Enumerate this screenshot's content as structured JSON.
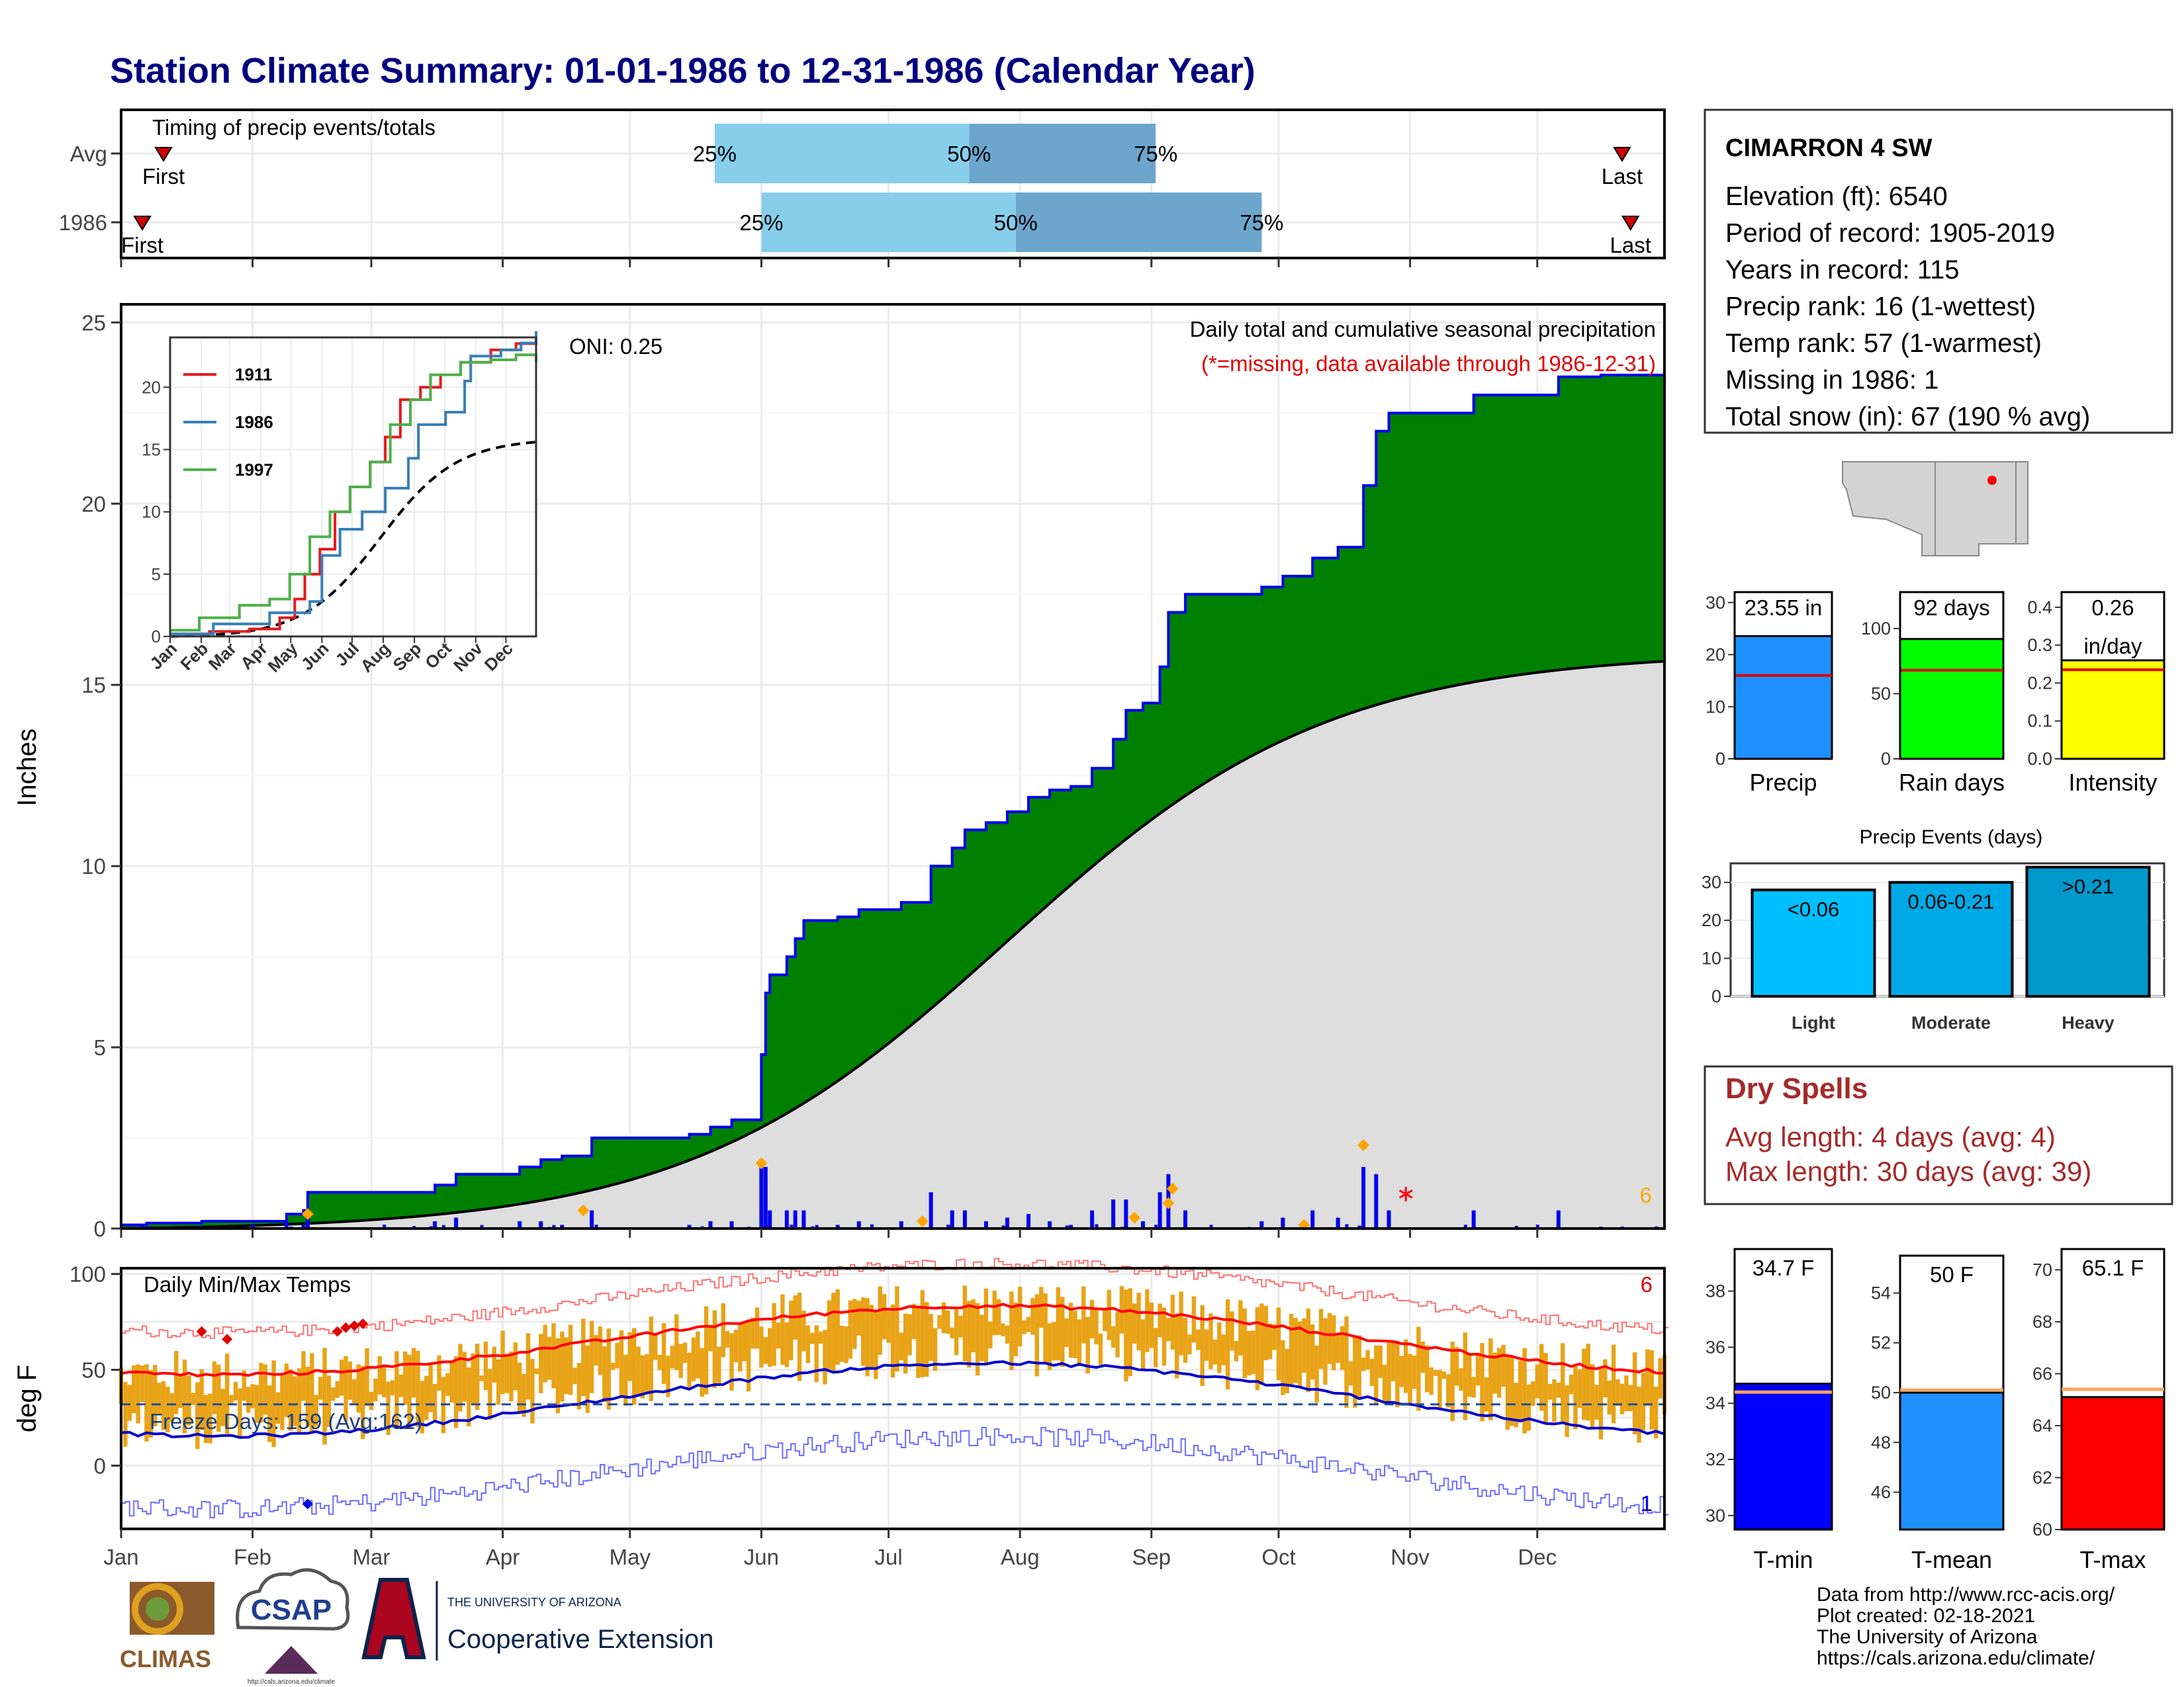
{
  "title": "Station Climate Summary: 01-01-1986 to 12-31-1986 (Calendar Year)",
  "timing": {
    "label": "Timing of precip events/totals",
    "rows": [
      {
        "name": "Avg",
        "first_doy": 11,
        "last_doy": 355,
        "p25_doy": 141,
        "p50_doy": 201,
        "p75_doy": 245,
        "first_label": "First",
        "last_label": "Last",
        "p25_label": "25%",
        "p50_label": "50%",
        "p75_label": "75%"
      },
      {
        "name": "1986",
        "first_doy": 6,
        "last_doy": 357,
        "p25_doy": 152,
        "p50_doy": 212,
        "p75_doy": 270,
        "first_label": "First",
        "last_label": "Last",
        "p25_label": "25%",
        "p50_label": "50%",
        "p75_label": "75%"
      }
    ]
  },
  "precip_panel": {
    "ylabel": "Inches",
    "yticks": [
      0,
      5,
      10,
      15,
      20,
      25
    ],
    "ylim": [
      0,
      25.5
    ],
    "label_main": "Daily total and cumulative seasonal precipitation",
    "label_missing": "(*=missing, data available through 1986-12-31)",
    "oni": "ONI: 0.25",
    "corner_count": "6",
    "colors": {
      "above": "#008000",
      "below": "#8B5A00",
      "normal": "#DEDEDE",
      "cum_line": "#0000EE",
      "daily": "#0000EE",
      "snow": "#FFA500",
      "missing": "#FF0000"
    }
  },
  "inset": {
    "xlabels": [
      "Jan",
      "Feb",
      "Mar",
      "Apr",
      "May",
      "Jun",
      "Jul",
      "Aug",
      "Sep",
      "Oct",
      "Nov",
      "Dec"
    ],
    "yticks": [
      0,
      5,
      10,
      15,
      20
    ],
    "ylim": [
      0,
      24
    ],
    "series": [
      {
        "name": "1911",
        "color": "#E41A1C"
      },
      {
        "name": "1986",
        "color": "#377EB8"
      },
      {
        "name": "1997",
        "color": "#4DAF4A"
      }
    ]
  },
  "temp_panel": {
    "ylabel": "deg F",
    "yticks": [
      0,
      50,
      100
    ],
    "ylim": [
      -33,
      103
    ],
    "label": "Daily Min/Max Temps",
    "freeze_label": "Freeze Days: 159 (Avg:162)",
    "freeze_line": 32,
    "count_top": "6",
    "count_bottom": "1",
    "colors": {
      "bar": "#E8A317",
      "max_avg": "#FF0000",
      "min_avg": "#0000CC",
      "max_rec": "#FF7070",
      "min_rec": "#6A6AFF"
    }
  },
  "months": [
    "Jan",
    "Feb",
    "Mar",
    "Apr",
    "May",
    "Jun",
    "Jul",
    "Aug",
    "Sep",
    "Oct",
    "Nov",
    "Dec"
  ],
  "station": {
    "name": "CIMARRON 4 SW",
    "lines": [
      "Elevation (ft): 6540",
      "Period of record: 1905-2019",
      "Years in record: 115",
      "Precip rank: 16 (1-wettest)",
      "Temp rank: 57 (1-warmest)",
      "Missing in 1986: 1",
      "Total snow (in): 67 (190 % avg)"
    ]
  },
  "summary_bars": [
    {
      "name": "Precip",
      "label": "23.55 in",
      "label2": "",
      "value": 23.55,
      "avg": 16,
      "ylim": [
        0,
        32
      ],
      "yticks": [
        0,
        10,
        20,
        30
      ],
      "color": "#1E90FF"
    },
    {
      "name": "Rain days",
      "label": "92 days",
      "label2": "",
      "value": 92,
      "avg": 68,
      "ylim": [
        0,
        128
      ],
      "yticks": [
        0,
        50,
        100
      ],
      "color": "#00FF00"
    },
    {
      "name": "Intensity",
      "label": "0.26",
      "label2": "in/day",
      "value": 0.26,
      "avg": 0.235,
      "ylim": [
        0,
        0.44
      ],
      "yticks": [
        0.0,
        0.1,
        0.2,
        0.3,
        0.4
      ],
      "color": "#FFFF00"
    }
  ],
  "precip_events": {
    "title": "Precip Events (days)",
    "yticks": [
      0,
      10,
      20,
      30
    ],
    "ylim": [
      0,
      35
    ],
    "bars": [
      {
        "name": "Light",
        "label": "<0.06",
        "value": 28,
        "color": "#00BFFF"
      },
      {
        "name": "Moderate",
        "label": "0.06-0.21",
        "value": 30,
        "color": "#00A9E6"
      },
      {
        "name": "Heavy",
        "label": ">0.21",
        "value": 34,
        "color": "#0099CC"
      }
    ]
  },
  "dry_spells": {
    "title": "Dry Spells",
    "lines": [
      "Avg length: 4 days (avg: 4)",
      "Max length: 30 days (avg: 39)"
    ]
  },
  "temp_bars": [
    {
      "name": "T-min",
      "label": "34.7 F",
      "value": 34.7,
      "avg": 34.4,
      "ylim": [
        29.5,
        39.5
      ],
      "yticks": [
        30,
        32,
        34,
        36,
        38
      ],
      "color": "#0000FF"
    },
    {
      "name": "T-mean",
      "label": "50 F",
      "value": 50,
      "avg": 50.1,
      "ylim": [
        44.5,
        55.5
      ],
      "yticks": [
        46,
        48,
        50,
        52,
        54
      ],
      "color": "#1E90FF"
    },
    {
      "name": "T-max",
      "label": "65.1 F",
      "value": 65.1,
      "avg": 65.4,
      "ylim": [
        60,
        70.8
      ],
      "yticks": [
        60,
        62,
        64,
        66,
        68,
        70
      ],
      "color": "#FF0000"
    }
  ],
  "footer": {
    "lines": [
      "Data from http://www.rcc-acis.org/",
      "Plot created: 02-18-2021",
      "The University of Arizona",
      "https://cals.arizona.edu/climate/"
    ],
    "logo_climas": "CLIMAS",
    "logo_csap": "CSAP",
    "ua_small": "THE UNIVERSITY OF ARIZONA",
    "ua_big": "Cooperative Extension",
    "csap_url": "http://cals.arizona.edu/climate"
  }
}
